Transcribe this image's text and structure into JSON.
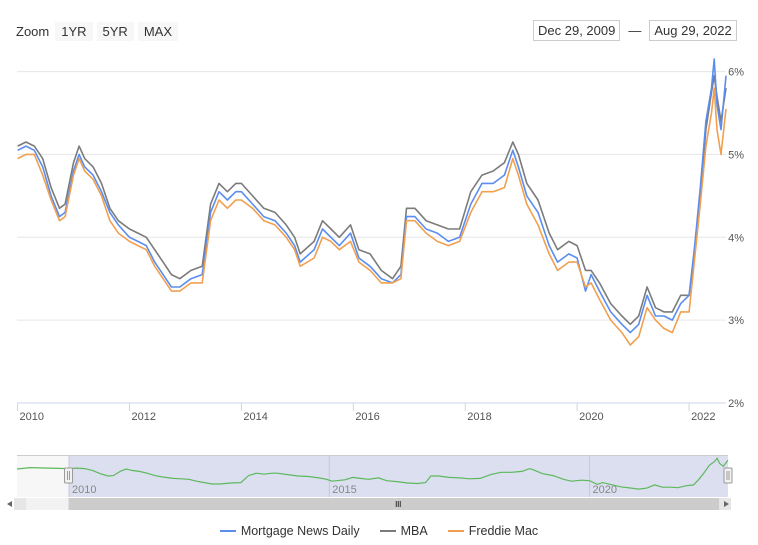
{
  "toolbar": {
    "zoom_label": "Zoom",
    "buttons": [
      "1YR",
      "5YR",
      "MAX"
    ],
    "date_from": "Dec 29, 2009",
    "date_sep": "—",
    "date_to": "Aug 29, 2022"
  },
  "colors": {
    "mnd": "#5b8def",
    "mba": "#7b7b7b",
    "freddie": "#f0a050",
    "navigator_line": "#5cb85c",
    "navigator_mask": "#d8dbed"
  },
  "chart_data": {
    "type": "line",
    "x_axis": {
      "min": 2009.99,
      "max": 2022.66,
      "ticks": [
        "2010",
        "2012",
        "2014",
        "2016",
        "2018",
        "2020",
        "2022"
      ]
    },
    "y_axis": {
      "min": 2,
      "max": 6.2,
      "ticks": [
        "2%",
        "3%",
        "4%",
        "5%",
        "6%"
      ],
      "side": "right"
    },
    "grid": true,
    "legend_position": "bottom",
    "series": [
      {
        "name": "Mortgage News Daily",
        "points": [
          [
            2010.0,
            5.05
          ],
          [
            2010.15,
            5.1
          ],
          [
            2010.3,
            5.05
          ],
          [
            2010.45,
            4.85
          ],
          [
            2010.6,
            4.5
          ],
          [
            2010.75,
            4.25
          ],
          [
            2010.85,
            4.3
          ],
          [
            2011.0,
            4.8
          ],
          [
            2011.1,
            5.0
          ],
          [
            2011.2,
            4.85
          ],
          [
            2011.35,
            4.75
          ],
          [
            2011.5,
            4.55
          ],
          [
            2011.65,
            4.3
          ],
          [
            2011.8,
            4.15
          ],
          [
            2012.0,
            4.0
          ],
          [
            2012.15,
            3.95
          ],
          [
            2012.3,
            3.9
          ],
          [
            2012.45,
            3.7
          ],
          [
            2012.6,
            3.55
          ],
          [
            2012.75,
            3.4
          ],
          [
            2012.9,
            3.4
          ],
          [
            2013.1,
            3.5
          ],
          [
            2013.3,
            3.55
          ],
          [
            2013.45,
            4.3
          ],
          [
            2013.6,
            4.55
          ],
          [
            2013.75,
            4.45
          ],
          [
            2013.9,
            4.55
          ],
          [
            2014.0,
            4.55
          ],
          [
            2014.2,
            4.4
          ],
          [
            2014.4,
            4.25
          ],
          [
            2014.6,
            4.2
          ],
          [
            2014.8,
            4.05
          ],
          [
            2014.95,
            3.9
          ],
          [
            2015.05,
            3.7
          ],
          [
            2015.3,
            3.85
          ],
          [
            2015.45,
            4.1
          ],
          [
            2015.6,
            4.0
          ],
          [
            2015.75,
            3.9
          ],
          [
            2015.95,
            4.05
          ],
          [
            2016.1,
            3.75
          ],
          [
            2016.3,
            3.65
          ],
          [
            2016.5,
            3.5
          ],
          [
            2016.7,
            3.45
          ],
          [
            2016.85,
            3.55
          ],
          [
            2016.95,
            4.25
          ],
          [
            2017.1,
            4.25
          ],
          [
            2017.3,
            4.1
          ],
          [
            2017.5,
            4.05
          ],
          [
            2017.7,
            3.95
          ],
          [
            2017.9,
            4.0
          ],
          [
            2018.1,
            4.4
          ],
          [
            2018.3,
            4.65
          ],
          [
            2018.5,
            4.65
          ],
          [
            2018.7,
            4.75
          ],
          [
            2018.85,
            5.05
          ],
          [
            2018.95,
            4.85
          ],
          [
            2019.1,
            4.5
          ],
          [
            2019.3,
            4.3
          ],
          [
            2019.5,
            3.9
          ],
          [
            2019.65,
            3.7
          ],
          [
            2019.85,
            3.8
          ],
          [
            2020.0,
            3.75
          ],
          [
            2020.15,
            3.35
          ],
          [
            2020.25,
            3.55
          ],
          [
            2020.4,
            3.35
          ],
          [
            2020.6,
            3.1
          ],
          [
            2020.8,
            2.95
          ],
          [
            2020.95,
            2.85
          ],
          [
            2021.1,
            2.95
          ],
          [
            2021.25,
            3.3
          ],
          [
            2021.4,
            3.05
          ],
          [
            2021.55,
            3.05
          ],
          [
            2021.7,
            3.0
          ],
          [
            2021.85,
            3.2
          ],
          [
            2022.0,
            3.3
          ],
          [
            2022.1,
            3.9
          ],
          [
            2022.2,
            4.6
          ],
          [
            2022.3,
            5.4
          ],
          [
            2022.4,
            5.8
          ],
          [
            2022.45,
            6.15
          ],
          [
            2022.5,
            5.6
          ],
          [
            2022.57,
            5.3
          ],
          [
            2022.66,
            5.95
          ]
        ]
      },
      {
        "name": "MBA",
        "points": [
          [
            2010.0,
            5.1
          ],
          [
            2010.15,
            5.15
          ],
          [
            2010.3,
            5.1
          ],
          [
            2010.45,
            4.95
          ],
          [
            2010.6,
            4.6
          ],
          [
            2010.75,
            4.35
          ],
          [
            2010.85,
            4.4
          ],
          [
            2011.0,
            4.9
          ],
          [
            2011.1,
            5.1
          ],
          [
            2011.2,
            4.95
          ],
          [
            2011.35,
            4.85
          ],
          [
            2011.5,
            4.65
          ],
          [
            2011.65,
            4.35
          ],
          [
            2011.8,
            4.2
          ],
          [
            2012.0,
            4.1
          ],
          [
            2012.15,
            4.05
          ],
          [
            2012.3,
            4.0
          ],
          [
            2012.45,
            3.85
          ],
          [
            2012.6,
            3.7
          ],
          [
            2012.75,
            3.55
          ],
          [
            2012.9,
            3.5
          ],
          [
            2013.1,
            3.6
          ],
          [
            2013.3,
            3.65
          ],
          [
            2013.45,
            4.4
          ],
          [
            2013.6,
            4.65
          ],
          [
            2013.75,
            4.55
          ],
          [
            2013.9,
            4.65
          ],
          [
            2014.0,
            4.65
          ],
          [
            2014.2,
            4.5
          ],
          [
            2014.4,
            4.35
          ],
          [
            2014.6,
            4.3
          ],
          [
            2014.8,
            4.15
          ],
          [
            2014.95,
            4.0
          ],
          [
            2015.05,
            3.8
          ],
          [
            2015.3,
            3.95
          ],
          [
            2015.45,
            4.2
          ],
          [
            2015.6,
            4.1
          ],
          [
            2015.75,
            4.0
          ],
          [
            2015.95,
            4.15
          ],
          [
            2016.1,
            3.85
          ],
          [
            2016.3,
            3.8
          ],
          [
            2016.5,
            3.6
          ],
          [
            2016.7,
            3.5
          ],
          [
            2016.85,
            3.65
          ],
          [
            2016.95,
            4.35
          ],
          [
            2017.1,
            4.35
          ],
          [
            2017.3,
            4.2
          ],
          [
            2017.5,
            4.15
          ],
          [
            2017.7,
            4.1
          ],
          [
            2017.9,
            4.1
          ],
          [
            2018.1,
            4.55
          ],
          [
            2018.3,
            4.75
          ],
          [
            2018.5,
            4.8
          ],
          [
            2018.7,
            4.9
          ],
          [
            2018.85,
            5.15
          ],
          [
            2018.95,
            5.0
          ],
          [
            2019.1,
            4.65
          ],
          [
            2019.3,
            4.45
          ],
          [
            2019.5,
            4.05
          ],
          [
            2019.65,
            3.85
          ],
          [
            2019.85,
            3.95
          ],
          [
            2020.0,
            3.9
          ],
          [
            2020.15,
            3.6
          ],
          [
            2020.25,
            3.6
          ],
          [
            2020.4,
            3.45
          ],
          [
            2020.6,
            3.2
          ],
          [
            2020.8,
            3.05
          ],
          [
            2020.95,
            2.95
          ],
          [
            2021.1,
            3.05
          ],
          [
            2021.25,
            3.4
          ],
          [
            2021.4,
            3.15
          ],
          [
            2021.55,
            3.1
          ],
          [
            2021.7,
            3.1
          ],
          [
            2021.85,
            3.3
          ],
          [
            2022.0,
            3.3
          ],
          [
            2022.1,
            3.85
          ],
          [
            2022.2,
            4.5
          ],
          [
            2022.3,
            5.3
          ],
          [
            2022.4,
            5.75
          ],
          [
            2022.45,
            5.95
          ],
          [
            2022.5,
            5.7
          ],
          [
            2022.57,
            5.4
          ],
          [
            2022.66,
            5.8
          ]
        ]
      },
      {
        "name": "Freddie Mac",
        "points": [
          [
            2010.0,
            4.95
          ],
          [
            2010.15,
            5.0
          ],
          [
            2010.3,
            5.0
          ],
          [
            2010.45,
            4.75
          ],
          [
            2010.6,
            4.45
          ],
          [
            2010.75,
            4.2
          ],
          [
            2010.85,
            4.25
          ],
          [
            2011.0,
            4.75
          ],
          [
            2011.1,
            4.95
          ],
          [
            2011.2,
            4.8
          ],
          [
            2011.35,
            4.7
          ],
          [
            2011.5,
            4.5
          ],
          [
            2011.65,
            4.2
          ],
          [
            2011.8,
            4.05
          ],
          [
            2012.0,
            3.95
          ],
          [
            2012.15,
            3.9
          ],
          [
            2012.3,
            3.85
          ],
          [
            2012.45,
            3.65
          ],
          [
            2012.6,
            3.5
          ],
          [
            2012.75,
            3.35
          ],
          [
            2012.9,
            3.35
          ],
          [
            2013.1,
            3.45
          ],
          [
            2013.3,
            3.45
          ],
          [
            2013.45,
            4.2
          ],
          [
            2013.6,
            4.45
          ],
          [
            2013.75,
            4.35
          ],
          [
            2013.9,
            4.45
          ],
          [
            2014.0,
            4.45
          ],
          [
            2014.2,
            4.35
          ],
          [
            2014.4,
            4.2
          ],
          [
            2014.6,
            4.15
          ],
          [
            2014.8,
            4.0
          ],
          [
            2014.95,
            3.85
          ],
          [
            2015.05,
            3.65
          ],
          [
            2015.3,
            3.75
          ],
          [
            2015.45,
            4.0
          ],
          [
            2015.6,
            3.95
          ],
          [
            2015.75,
            3.85
          ],
          [
            2015.95,
            3.95
          ],
          [
            2016.1,
            3.7
          ],
          [
            2016.3,
            3.6
          ],
          [
            2016.5,
            3.45
          ],
          [
            2016.7,
            3.45
          ],
          [
            2016.85,
            3.5
          ],
          [
            2016.95,
            4.2
          ],
          [
            2017.1,
            4.2
          ],
          [
            2017.3,
            4.05
          ],
          [
            2017.5,
            3.95
          ],
          [
            2017.7,
            3.9
          ],
          [
            2017.9,
            3.95
          ],
          [
            2018.1,
            4.3
          ],
          [
            2018.3,
            4.55
          ],
          [
            2018.5,
            4.55
          ],
          [
            2018.7,
            4.6
          ],
          [
            2018.85,
            4.95
          ],
          [
            2018.95,
            4.75
          ],
          [
            2019.1,
            4.4
          ],
          [
            2019.3,
            4.15
          ],
          [
            2019.5,
            3.8
          ],
          [
            2019.65,
            3.6
          ],
          [
            2019.85,
            3.7
          ],
          [
            2020.0,
            3.7
          ],
          [
            2020.15,
            3.4
          ],
          [
            2020.25,
            3.45
          ],
          [
            2020.4,
            3.25
          ],
          [
            2020.6,
            3.0
          ],
          [
            2020.8,
            2.85
          ],
          [
            2020.95,
            2.7
          ],
          [
            2021.1,
            2.8
          ],
          [
            2021.25,
            3.15
          ],
          [
            2021.4,
            3.0
          ],
          [
            2021.55,
            2.9
          ],
          [
            2021.7,
            2.85
          ],
          [
            2021.85,
            3.1
          ],
          [
            2022.0,
            3.1
          ],
          [
            2022.1,
            3.75
          ],
          [
            2022.2,
            4.4
          ],
          [
            2022.3,
            5.1
          ],
          [
            2022.4,
            5.5
          ],
          [
            2022.45,
            5.8
          ],
          [
            2022.5,
            5.3
          ],
          [
            2022.57,
            5.0
          ],
          [
            2022.66,
            5.55
          ]
        ]
      }
    ],
    "navigator": {
      "x_axis": {
        "min": 2009.0,
        "max": 2022.66,
        "ticks": [
          "2010",
          "2015",
          "2020"
        ]
      }
    }
  }
}
